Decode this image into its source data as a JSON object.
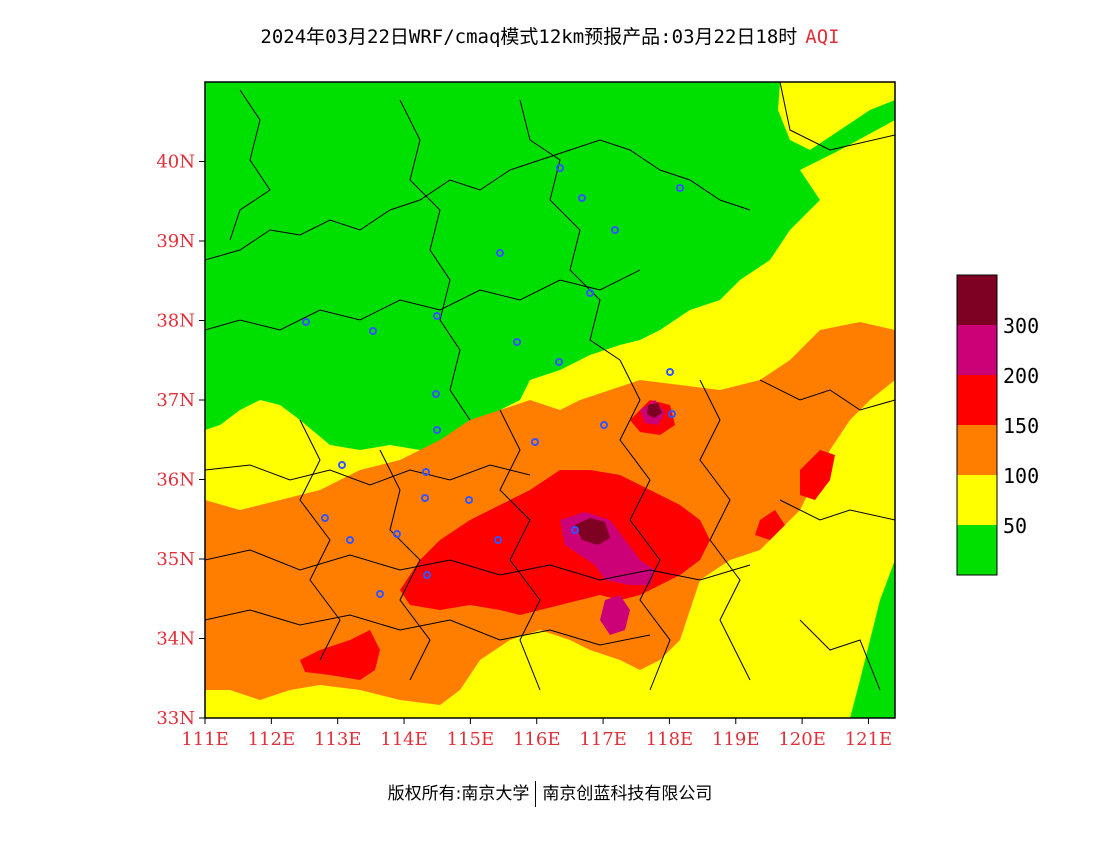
{
  "title": {
    "main": "2024年03月22日WRF/cmaq模式12km预报产品:03月22日18时",
    "variable": "AQI"
  },
  "map": {
    "lon_range": [
      111,
      121.4
    ],
    "lat_range": [
      33,
      41
    ],
    "x_ticks": [
      "111E",
      "112E",
      "113E",
      "114E",
      "115E",
      "116E",
      "117E",
      "118E",
      "119E",
      "120E",
      "121E"
    ],
    "y_ticks": [
      "33N",
      "34N",
      "35N",
      "36N",
      "37N",
      "38N",
      "39N",
      "40N"
    ],
    "colors": {
      "good": "#00e000",
      "moderate": "#ffff00",
      "usg": "#ff7e00",
      "unhealthy": "#ff0000",
      "very_unhealthy": "#cc0077",
      "hazardous": "#7e0023",
      "boundary": "#000000",
      "station": "#3355ff",
      "axis_text": "#e0303a"
    }
  },
  "legend": {
    "labels": [
      "300",
      "200",
      "150",
      "100",
      "50"
    ],
    "colors": [
      "#7e0023",
      "#cc0077",
      "#ff0000",
      "#ff7e00",
      "#ffff00",
      "#00e000"
    ]
  },
  "footer": {
    "left": "版权所有:南京大学",
    "right": "南京创蓝科技有限公司"
  }
}
